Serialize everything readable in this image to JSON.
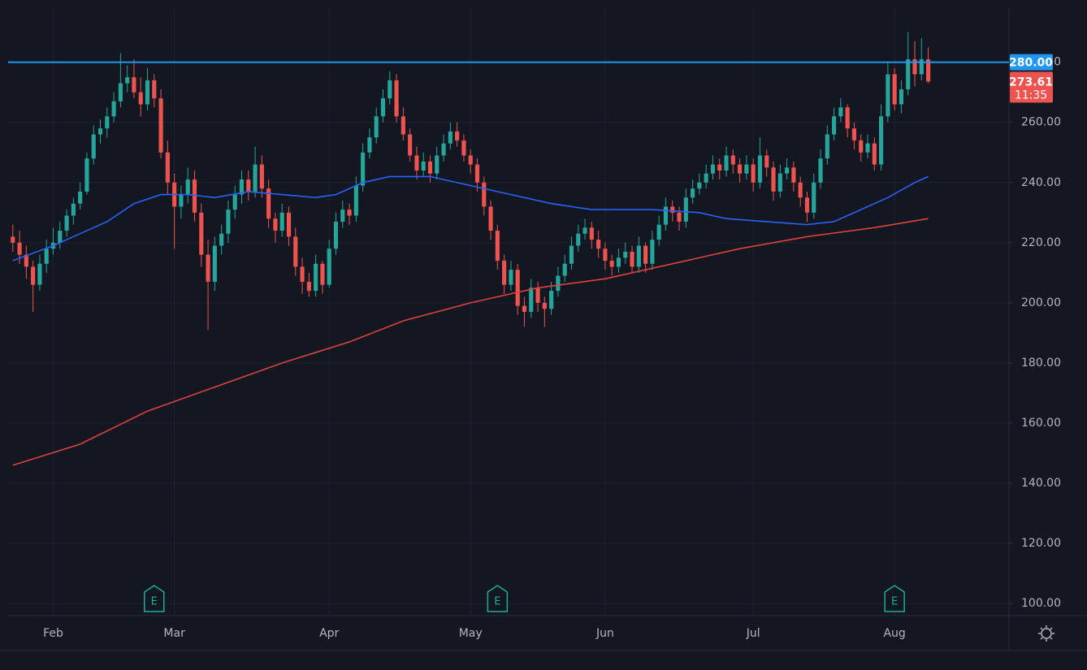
{
  "chart_data": {
    "type": "candlestick",
    "up_color": "#26a69a",
    "down_color": "#ef5350",
    "ohlc": [
      [
        222,
        226,
        217,
        220
      ],
      [
        220,
        224,
        213,
        216
      ],
      [
        216,
        219,
        208,
        212
      ],
      [
        212,
        214,
        197,
        206
      ],
      [
        206,
        216,
        204,
        213
      ],
      [
        213,
        221,
        210,
        218
      ],
      [
        218,
        225,
        216,
        220
      ],
      [
        220,
        227,
        218,
        224
      ],
      [
        224,
        231,
        222,
        229
      ],
      [
        229,
        235,
        226,
        233
      ],
      [
        233,
        240,
        231,
        237
      ],
      [
        237,
        250,
        236,
        248
      ],
      [
        248,
        259,
        246,
        256
      ],
      [
        256,
        261,
        253,
        258
      ],
      [
        258,
        265,
        255,
        262
      ],
      [
        262,
        270,
        260,
        267
      ],
      [
        267,
        283,
        265,
        273
      ],
      [
        273,
        279,
        270,
        275
      ],
      [
        275,
        281,
        268,
        270
      ],
      [
        270,
        275,
        262,
        266
      ],
      [
        266,
        278,
        264,
        274
      ],
      [
        274,
        276,
        265,
        268
      ],
      [
        268,
        271,
        248,
        250
      ],
      [
        250,
        254,
        236,
        240
      ],
      [
        240,
        243,
        218,
        232
      ],
      [
        232,
        239,
        228,
        236
      ],
      [
        236,
        245,
        233,
        241
      ],
      [
        241,
        244,
        227,
        230
      ],
      [
        230,
        233,
        212,
        216
      ],
      [
        216,
        221,
        191,
        207
      ],
      [
        207,
        222,
        204,
        219
      ],
      [
        219,
        226,
        216,
        223
      ],
      [
        223,
        234,
        220,
        231
      ],
      [
        231,
        239,
        228,
        236
      ],
      [
        236,
        244,
        233,
        241
      ],
      [
        241,
        244,
        234,
        237
      ],
      [
        237,
        252,
        235,
        246
      ],
      [
        246,
        249,
        235,
        238
      ],
      [
        238,
        241,
        225,
        228
      ],
      [
        228,
        230,
        220,
        224
      ],
      [
        224,
        233,
        222,
        230
      ],
      [
        230,
        232,
        219,
        222
      ],
      [
        222,
        225,
        209,
        212
      ],
      [
        212,
        215,
        203,
        207
      ],
      [
        207,
        210,
        202,
        204
      ],
      [
        204,
        216,
        202,
        213
      ],
      [
        213,
        214,
        203,
        206
      ],
      [
        206,
        221,
        205,
        218
      ],
      [
        218,
        230,
        216,
        227
      ],
      [
        227,
        234,
        225,
        231
      ],
      [
        231,
        233,
        226,
        229
      ],
      [
        229,
        242,
        227,
        239
      ],
      [
        239,
        253,
        237,
        250
      ],
      [
        250,
        258,
        248,
        255
      ],
      [
        255,
        265,
        253,
        262
      ],
      [
        262,
        271,
        260,
        268
      ],
      [
        268,
        277,
        266,
        274
      ],
      [
        274,
        276,
        260,
        262
      ],
      [
        262,
        265,
        254,
        256
      ],
      [
        256,
        258,
        247,
        249
      ],
      [
        249,
        252,
        241,
        244
      ],
      [
        244,
        250,
        242,
        247
      ],
      [
        247,
        249,
        240,
        243
      ],
      [
        243,
        252,
        241,
        249
      ],
      [
        249,
        256,
        247,
        253
      ],
      [
        253,
        260,
        251,
        257
      ],
      [
        257,
        260,
        252,
        254
      ],
      [
        254,
        256,
        247,
        249
      ],
      [
        249,
        251,
        243,
        246
      ],
      [
        246,
        248,
        237,
        240
      ],
      [
        240,
        242,
        229,
        232
      ],
      [
        232,
        234,
        221,
        224
      ],
      [
        224,
        226,
        211,
        214
      ],
      [
        214,
        216,
        203,
        206
      ],
      [
        206,
        214,
        204,
        211
      ],
      [
        211,
        213,
        196,
        199
      ],
      [
        199,
        202,
        192,
        197
      ],
      [
        197,
        208,
        195,
        205
      ],
      [
        205,
        207,
        197,
        200
      ],
      [
        200,
        202,
        192,
        198
      ],
      [
        198,
        207,
        196,
        204
      ],
      [
        204,
        212,
        202,
        209
      ],
      [
        209,
        216,
        207,
        213
      ],
      [
        213,
        222,
        211,
        219
      ],
      [
        219,
        226,
        217,
        223
      ],
      [
        223,
        228,
        221,
        225
      ],
      [
        225,
        227,
        218,
        221
      ],
      [
        221,
        224,
        215,
        218
      ],
      [
        218,
        220,
        211,
        214
      ],
      [
        214,
        216,
        209,
        212
      ],
      [
        212,
        218,
        210,
        215
      ],
      [
        215,
        220,
        213,
        217
      ],
      [
        217,
        219,
        210,
        212
      ],
      [
        212,
        222,
        210,
        219
      ],
      [
        219,
        220,
        210,
        213
      ],
      [
        213,
        224,
        211,
        221
      ],
      [
        221,
        229,
        219,
        226
      ],
      [
        226,
        235,
        224,
        232
      ],
      [
        232,
        234,
        227,
        230
      ],
      [
        230,
        232,
        224,
        227
      ],
      [
        227,
        238,
        225,
        235
      ],
      [
        235,
        241,
        233,
        238
      ],
      [
        238,
        243,
        236,
        240
      ],
      [
        240,
        246,
        238,
        243
      ],
      [
        243,
        249,
        241,
        246
      ],
      [
        246,
        248,
        241,
        244
      ],
      [
        244,
        252,
        242,
        249
      ],
      [
        249,
        251,
        243,
        246
      ],
      [
        246,
        248,
        240,
        243
      ],
      [
        243,
        249,
        241,
        246
      ],
      [
        246,
        248,
        237,
        240
      ],
      [
        240,
        255,
        238,
        249
      ],
      [
        249,
        251,
        242,
        245
      ],
      [
        245,
        247,
        234,
        237
      ],
      [
        237,
        246,
        235,
        243
      ],
      [
        243,
        248,
        241,
        245
      ],
      [
        245,
        247,
        237,
        240
      ],
      [
        240,
        242,
        232,
        235
      ],
      [
        235,
        237,
        227,
        230
      ],
      [
        230,
        243,
        228,
        240
      ],
      [
        240,
        251,
        238,
        248
      ],
      [
        248,
        259,
        246,
        256
      ],
      [
        256,
        265,
        254,
        262
      ],
      [
        262,
        268,
        260,
        265
      ],
      [
        265,
        266,
        255,
        258
      ],
      [
        258,
        260,
        251,
        254
      ],
      [
        254,
        256,
        247,
        250
      ],
      [
        250,
        256,
        248,
        253
      ],
      [
        253,
        255,
        244,
        246
      ],
      [
        246,
        266,
        244,
        262
      ],
      [
        262,
        280,
        260,
        276
      ],
      [
        276,
        278,
        264,
        266
      ],
      [
        266,
        274,
        263,
        271
      ],
      [
        271,
        290,
        269,
        281
      ],
      [
        281,
        287,
        272,
        276
      ],
      [
        276,
        288,
        274,
        281
      ],
      [
        281,
        285,
        273,
        273.61
      ]
    ],
    "lines": [
      {
        "color": "#2962ff",
        "x": [
          0,
          6,
          10,
          14,
          18,
          22,
          26,
          30,
          35,
          40,
          45,
          48,
          52,
          56,
          62,
          68,
          74,
          80,
          86,
          95,
          102,
          106,
          112,
          118,
          122,
          126,
          130,
          134,
          136
        ],
        "values": [
          214,
          219,
          223,
          227,
          233,
          236,
          236,
          235,
          237,
          236,
          235,
          236,
          240,
          242,
          242,
          239,
          236,
          233,
          231,
          231,
          230,
          228,
          227,
          226,
          227,
          231,
          235,
          240,
          242
        ]
      },
      {
        "color": "#e0413f",
        "x": [
          0,
          10,
          20,
          30,
          40,
          50,
          58,
          68,
          78,
          88,
          98,
          108,
          118,
          128,
          136
        ],
        "values": [
          146,
          153,
          164,
          172,
          180,
          187,
          194,
          200,
          205,
          208,
          213,
          218,
          222,
          225,
          228
        ]
      }
    ],
    "xlim": [
      -0.7,
      148
    ],
    "xticks": [
      {
        "value": 6,
        "label": "Feb"
      },
      {
        "value": 24,
        "label": "Mar"
      },
      {
        "value": 47,
        "label": "Apr"
      },
      {
        "value": 68,
        "label": "May"
      },
      {
        "value": 88,
        "label": "Jun"
      },
      {
        "value": 110,
        "label": "Jul"
      },
      {
        "value": 131,
        "label": "Aug"
      }
    ],
    "ylim": [
      96,
      298
    ],
    "yticks": [
      {
        "value": 100,
        "label": "100.00"
      },
      {
        "value": 120,
        "label": "120.00"
      },
      {
        "value": 140,
        "label": "140.00"
      },
      {
        "value": 160,
        "label": "160.00"
      },
      {
        "value": 180,
        "label": "180.00"
      },
      {
        "value": 200,
        "label": "200.00"
      },
      {
        "value": 220,
        "label": "220.00"
      },
      {
        "value": 240,
        "label": "240.00"
      },
      {
        "value": 260,
        "label": "260.00"
      },
      {
        "value": 280,
        "label": "280.00"
      }
    ],
    "grid": true,
    "hline": {
      "value": 280,
      "label": "280.00",
      "color": "#2196f3"
    },
    "last_price_label": "273.61",
    "countdown": "11:35",
    "events": [
      {
        "x": 21,
        "label": "E"
      },
      {
        "x": 72,
        "label": "E"
      },
      {
        "x": 131,
        "label": "E"
      }
    ]
  }
}
